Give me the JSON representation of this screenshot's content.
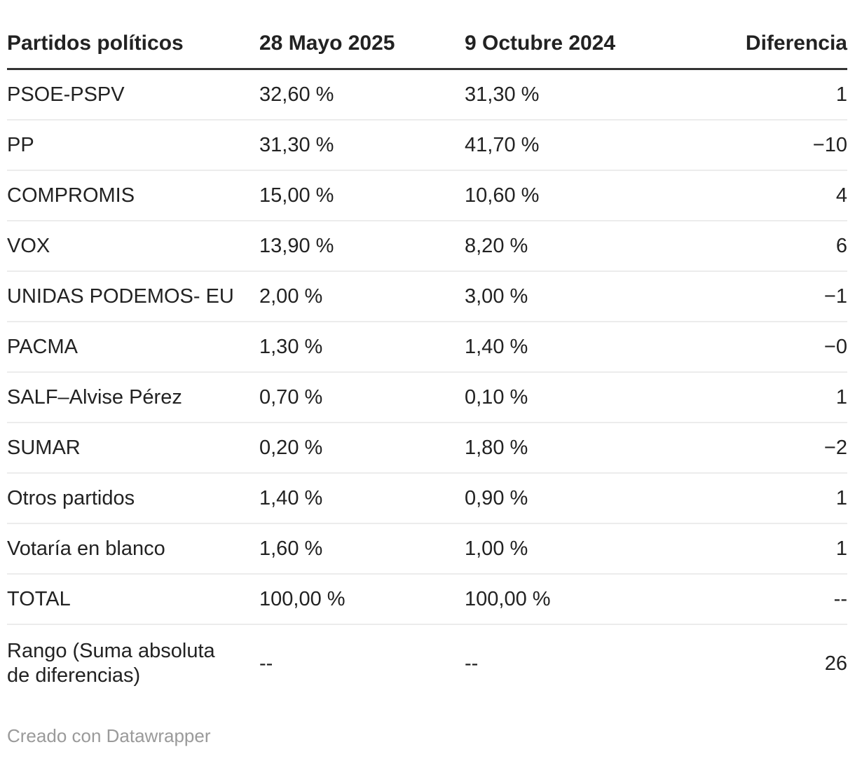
{
  "chart_data": {
    "type": "table",
    "columns": [
      {
        "label": "Partidos políticos",
        "align": "left"
      },
      {
        "label": "28 Mayo 2025",
        "align": "left"
      },
      {
        "label": "9 Octubre 2024",
        "align": "left"
      },
      {
        "label": "Diferencia",
        "align": "right"
      }
    ],
    "rows": [
      [
        "PSOE-PSPV",
        "32,60 %",
        "31,30 %",
        "1"
      ],
      [
        "PP",
        "31,30 %",
        "41,70 %",
        "−10"
      ],
      [
        "COMPROMIS",
        "15,00 %",
        "10,60 %",
        "4"
      ],
      [
        "VOX",
        "13,90 %",
        "8,20 %",
        "6"
      ],
      [
        "UNIDAS PODEMOS- EU",
        "2,00 %",
        "3,00 %",
        "−1"
      ],
      [
        "PACMA",
        "1,30 %",
        "1,40 %",
        "−0"
      ],
      [
        "SALF–Alvise Pérez",
        "0,70 %",
        "0,10 %",
        "1"
      ],
      [
        "SUMAR",
        "0,20 %",
        "1,80 %",
        "−2"
      ],
      [
        "Otros partidos",
        "1,40 %",
        "0,90 %",
        "1"
      ],
      [
        "Votaría en blanco",
        "1,60 %",
        "1,00 %",
        "1"
      ],
      [
        "TOTAL",
        "100,00 %",
        "100,00 %",
        "--"
      ],
      [
        "Rango (Suma absoluta de diferencias)",
        "--",
        "--",
        "26"
      ]
    ]
  },
  "footer": {
    "credit": "Creado con Datawrapper"
  },
  "colors": {
    "text": "#222222",
    "header_rule": "#333333",
    "row_rule": "#ececec",
    "credit_text": "#9a9a9a"
  }
}
